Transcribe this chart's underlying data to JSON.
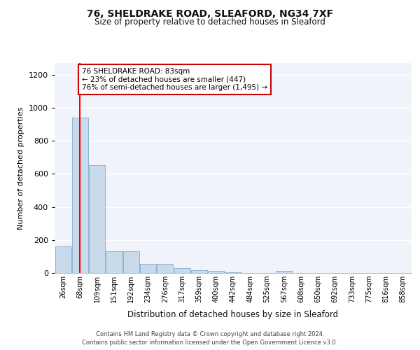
{
  "title1": "76, SHELDRAKE ROAD, SLEAFORD, NG34 7XF",
  "title2": "Size of property relative to detached houses in Sleaford",
  "xlabel": "Distribution of detached houses by size in Sleaford",
  "ylabel": "Number of detached properties",
  "bin_labels": [
    "26sqm",
    "68sqm",
    "109sqm",
    "151sqm",
    "192sqm",
    "234sqm",
    "276sqm",
    "317sqm",
    "359sqm",
    "400sqm",
    "442sqm",
    "484sqm",
    "525sqm",
    "567sqm",
    "608sqm",
    "650sqm",
    "692sqm",
    "733sqm",
    "775sqm",
    "816sqm",
    "858sqm"
  ],
  "bar_heights": [
    160,
    940,
    650,
    130,
    130,
    55,
    55,
    30,
    18,
    12,
    5,
    0,
    0,
    14,
    0,
    0,
    0,
    0,
    0,
    0,
    0
  ],
  "bar_color": "#c9daea",
  "bar_edge_color": "#8ab4d4",
  "red_line_bin": 1,
  "annotation_text": "76 SHELDRAKE ROAD: 83sqm\n← 23% of detached houses are smaller (447)\n76% of semi-detached houses are larger (1,495) →",
  "annotation_box_facecolor": "#ffffff",
  "annotation_box_edgecolor": "#cc0000",
  "ylim_max": 1270,
  "yticks": [
    0,
    200,
    400,
    600,
    800,
    1000,
    1200
  ],
  "bg_color": "#ffffff",
  "plot_bg_color": "#f0f4fa",
  "footnote_line1": "Contains HM Land Registry data © Crown copyright and database right 2024.",
  "footnote_line2": "Contains public sector information licensed under the Open Government Licence v3.0.",
  "title1_fontsize": 10,
  "title2_fontsize": 8.5
}
